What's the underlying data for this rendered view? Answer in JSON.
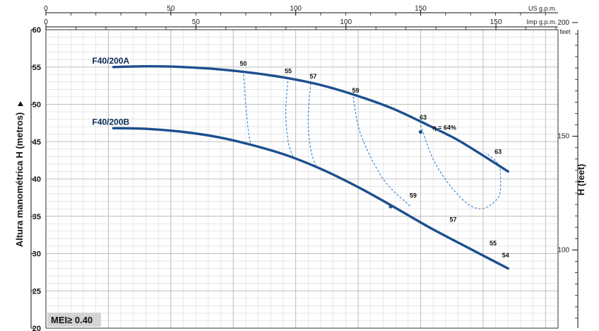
{
  "chart_data": {
    "type": "line",
    "y_axis_label": "Altura manométrica H (metros)",
    "y2_axis_label": "H  (feet)",
    "x_axis_top_unit": "US g.p.m.",
    "x_axis_bottom_unit": "Imp g.p.m.",
    "y2_unit": "feet",
    "mei_label": "MEI≥ 0.40",
    "xlim_usgpm": [
      0,
      205
    ],
    "ylim_m": [
      20,
      60
    ],
    "grid": true,
    "ticks_usgpm": [
      "0",
      "50",
      "100",
      "150"
    ],
    "ticks_impgpm": [
      "0",
      "50",
      "100",
      "150"
    ],
    "ticks_m": [
      "20",
      "25",
      "30",
      "35",
      "40",
      "45",
      "50",
      "55",
      "60"
    ],
    "ticks_ft": [
      "100",
      "150",
      "200"
    ],
    "series": [
      {
        "name": "F40/200A",
        "x_usgpm": [
          27,
          41,
          55,
          69,
          83,
          97,
          111,
          125,
          139,
          153,
          166,
          185
        ],
        "y_m": [
          55.0,
          55.1,
          55.0,
          54.7,
          54.2,
          53.5,
          52.5,
          51.1,
          49.4,
          47.2,
          45.0,
          41.0
        ]
      },
      {
        "name": "F40/200B",
        "x_usgpm": [
          27,
          41,
          55,
          69,
          83,
          97,
          111,
          125,
          139,
          153,
          166,
          185
        ],
        "y_m": [
          46.8,
          46.7,
          46.3,
          45.6,
          44.5,
          43.1,
          41.2,
          38.9,
          36.3,
          33.6,
          31.3,
          28.0
        ]
      }
    ],
    "efficiency": {
      "unit_label": "η = 64%",
      "labels": [
        {
          "text": "50",
          "x_usgpm": 79,
          "y_m": 54.8
        },
        {
          "text": "55",
          "x_usgpm": 97,
          "y_m": 53.8
        },
        {
          "text": "57",
          "x_usgpm": 107,
          "y_m": 53.1
        },
        {
          "text": "59",
          "x_usgpm": 124,
          "y_m": 51.2
        },
        {
          "text": "63",
          "x_usgpm": 151,
          "y_m": 47.6
        },
        {
          "text": "63",
          "x_usgpm": 181,
          "y_m": 43.0
        },
        {
          "text": "59",
          "x_usgpm": 147,
          "y_m": 37.1
        },
        {
          "text": "57",
          "x_usgpm": 163,
          "y_m": 33.9
        },
        {
          "text": "55",
          "x_usgpm": 179,
          "y_m": 30.7
        },
        {
          "text": "54",
          "x_usgpm": 184,
          "y_m": 29.1
        }
      ]
    },
    "iso_curves": [
      {
        "name": "50",
        "x_usgpm": [
          79,
          80,
          81,
          82
        ],
        "y_m": [
          54.5,
          50.0,
          46.5,
          44.7
        ]
      },
      {
        "name": "55",
        "x_usgpm": [
          97,
          96,
          97,
          99
        ],
        "y_m": [
          53.6,
          49.0,
          45.0,
          42.9
        ]
      },
      {
        "name": "57",
        "x_usgpm": [
          106,
          105,
          106,
          108
        ],
        "y_m": [
          52.8,
          48.0,
          44.0,
          41.8
        ]
      },
      {
        "name": "59",
        "x_usgpm": [
          123,
          126,
          135,
          146
        ],
        "y_m": [
          51.0,
          46.0,
          40.0,
          36.3
        ]
      },
      {
        "name": "63",
        "x_usgpm": [
          150,
          156,
          166,
          174,
          181,
          182,
          181,
          176
        ],
        "y_m": [
          47.2,
          42.0,
          37.5,
          36.0,
          37.5,
          40.0,
          42.0,
          43.5
        ]
      }
    ]
  }
}
